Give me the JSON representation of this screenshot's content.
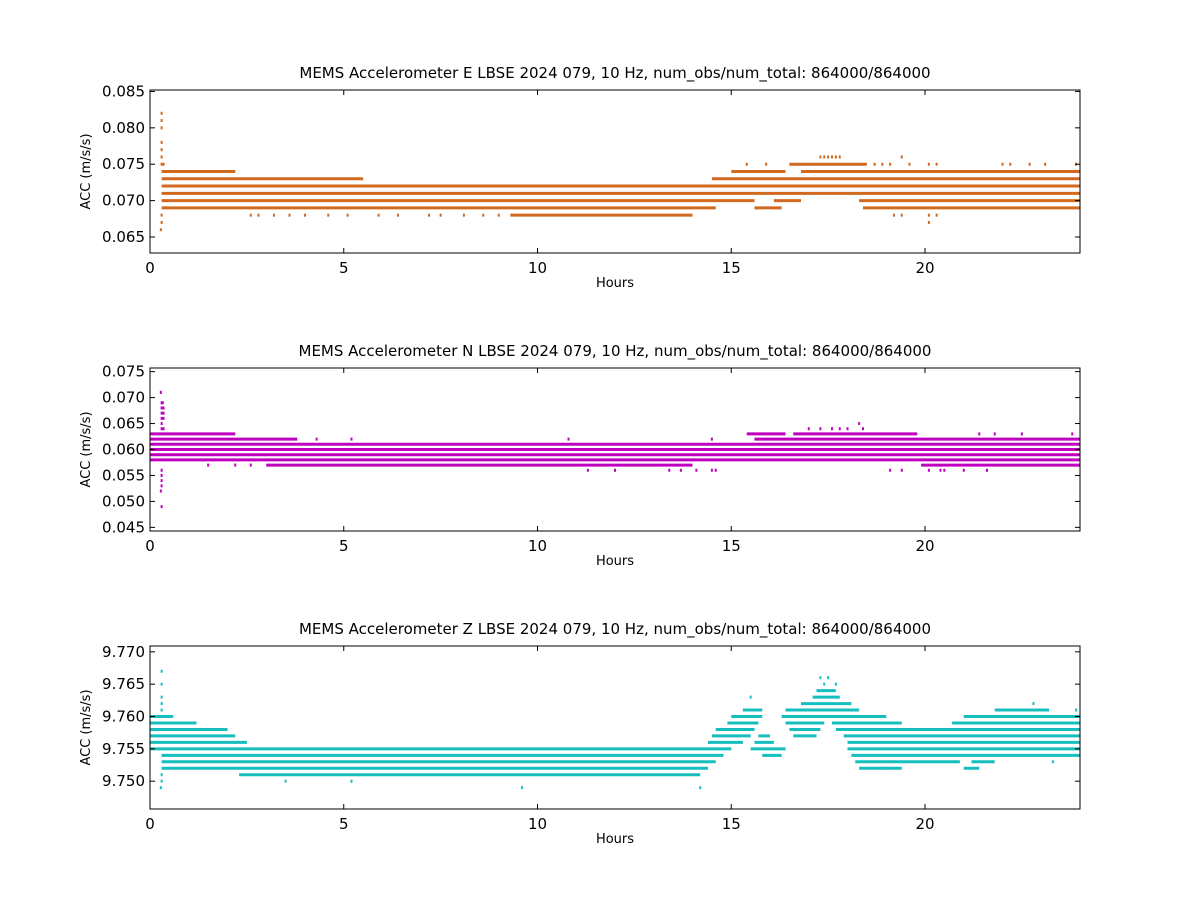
{
  "chart_data": [
    {
      "type": "scatter",
      "title": "MEMS Accelerometer E LBSE 2024 079, 10 Hz, num_obs/num_total: 864000/864000",
      "xlabel": "Hours",
      "ylabel": "ACC (m/s/s)",
      "xlim": [
        0,
        24
      ],
      "ylim": [
        0.0628,
        0.0852
      ],
      "x_ticks": [
        0,
        5,
        10,
        15,
        20
      ],
      "y_ticks": [
        0.065,
        0.07,
        0.075,
        0.08,
        0.085
      ],
      "y_decimals": 3,
      "grid": false,
      "color": "#d2691e",
      "series": [
        {
          "quantization_step": 0.001,
          "bands": [
            {
              "y": 0.069,
              "x": [
                [
                  0.3,
                  14.6
                ],
                [
                  15.6,
                  16.3
                ],
                [
                  18.4,
                  24
                ]
              ]
            },
            {
              "y": 0.07,
              "x": [
                [
                  0.3,
                  15.6
                ],
                [
                  16.1,
                  16.8
                ],
                [
                  18.3,
                  24
                ]
              ]
            },
            {
              "y": 0.071,
              "x": [
                [
                  0.3,
                  24
                ]
              ]
            },
            {
              "y": 0.072,
              "x": [
                [
                  0.3,
                  24
                ]
              ]
            },
            {
              "y": 0.073,
              "x": [
                [
                  0.3,
                  5.5
                ],
                [
                  14.5,
                  24
                ]
              ]
            },
            {
              "y": 0.074,
              "x": [
                [
                  0.3,
                  2.2
                ],
                [
                  15.0,
                  16.4
                ],
                [
                  16.8,
                  24
                ]
              ]
            },
            {
              "y": 0.075,
              "x": [
                [
                  16.5,
                  18.5
                ]
              ]
            },
            {
              "y": 0.068,
              "x": [
                [
                  9.3,
                  14.0
                ]
              ]
            }
          ],
          "points": [
            {
              "x": 0.3,
              "y": 0.082
            },
            {
              "x": 0.3,
              "y": 0.081
            },
            {
              "x": 0.3,
              "y": 0.08
            },
            {
              "x": 0.3,
              "y": 0.078
            },
            {
              "x": 0.3,
              "y": 0.077
            },
            {
              "x": 0.3,
              "y": 0.076
            },
            {
              "x": 0.3,
              "y": 0.075
            },
            {
              "x": 0.35,
              "y": 0.075
            },
            {
              "x": 0.3,
              "y": 0.068
            },
            {
              "x": 0.3,
              "y": 0.067
            },
            {
              "x": 0.28,
              "y": 0.066
            },
            {
              "x": 2.6,
              "y": 0.068
            },
            {
              "x": 2.8,
              "y": 0.068
            },
            {
              "x": 3.2,
              "y": 0.068
            },
            {
              "x": 3.6,
              "y": 0.068
            },
            {
              "x": 4.0,
              "y": 0.068
            },
            {
              "x": 4.6,
              "y": 0.068
            },
            {
              "x": 5.1,
              "y": 0.068
            },
            {
              "x": 5.9,
              "y": 0.068
            },
            {
              "x": 6.4,
              "y": 0.068
            },
            {
              "x": 7.2,
              "y": 0.068
            },
            {
              "x": 7.5,
              "y": 0.068
            },
            {
              "x": 8.1,
              "y": 0.068
            },
            {
              "x": 8.6,
              "y": 0.068
            },
            {
              "x": 9.0,
              "y": 0.068
            },
            {
              "x": 17.3,
              "y": 0.076
            },
            {
              "x": 17.4,
              "y": 0.076
            },
            {
              "x": 17.5,
              "y": 0.076
            },
            {
              "x": 17.6,
              "y": 0.076
            },
            {
              "x": 17.7,
              "y": 0.076
            },
            {
              "x": 17.8,
              "y": 0.076
            },
            {
              "x": 19.4,
              "y": 0.076
            },
            {
              "x": 15.4,
              "y": 0.075
            },
            {
              "x": 15.9,
              "y": 0.075
            },
            {
              "x": 18.7,
              "y": 0.075
            },
            {
              "x": 18.9,
              "y": 0.075
            },
            {
              "x": 19.1,
              "y": 0.075
            },
            {
              "x": 19.6,
              "y": 0.075
            },
            {
              "x": 20.1,
              "y": 0.075
            },
            {
              "x": 20.3,
              "y": 0.075
            },
            {
              "x": 22.0,
              "y": 0.075
            },
            {
              "x": 22.2,
              "y": 0.075
            },
            {
              "x": 22.7,
              "y": 0.075
            },
            {
              "x": 23.1,
              "y": 0.075
            },
            {
              "x": 23.9,
              "y": 0.075
            },
            {
              "x": 19.2,
              "y": 0.068
            },
            {
              "x": 19.4,
              "y": 0.068
            },
            {
              "x": 20.1,
              "y": 0.068
            },
            {
              "x": 20.3,
              "y": 0.068
            },
            {
              "x": 20.1,
              "y": 0.067
            }
          ]
        }
      ]
    },
    {
      "type": "scatter",
      "title": "MEMS Accelerometer N LBSE 2024 079, 10 Hz, num_obs/num_total: 864000/864000",
      "xlabel": "Hours",
      "ylabel": "ACC (m/s/s)",
      "xlim": [
        0,
        24
      ],
      "ylim": [
        0.0443,
        0.0757
      ],
      "x_ticks": [
        0,
        5,
        10,
        15,
        20
      ],
      "y_ticks": [
        0.045,
        0.05,
        0.055,
        0.06,
        0.065,
        0.07,
        0.075
      ],
      "y_decimals": 3,
      "grid": false,
      "color": "#bf00bf",
      "series": [
        {
          "quantization_step": 0.001,
          "bands": [
            {
              "y": 0.058,
              "x": [
                [
                  0.0,
                  24
                ]
              ]
            },
            {
              "y": 0.059,
              "x": [
                [
                  0.0,
                  24
                ]
              ]
            },
            {
              "y": 0.06,
              "x": [
                [
                  0.0,
                  24
                ]
              ]
            },
            {
              "y": 0.061,
              "x": [
                [
                  0.0,
                  24
                ]
              ]
            },
            {
              "y": 0.062,
              "x": [
                [
                  0.0,
                  3.8
                ],
                [
                  15.6,
                  24
                ]
              ]
            },
            {
              "y": 0.063,
              "x": [
                [
                  0.0,
                  2.2
                ],
                [
                  15.4,
                  16.4
                ],
                [
                  16.6,
                  19.8
                ]
              ]
            },
            {
              "y": 0.057,
              "x": [
                [
                  3.0,
                  14.0
                ],
                [
                  19.9,
                  24
                ]
              ]
            }
          ],
          "points": [
            {
              "x": 0.28,
              "y": 0.071
            },
            {
              "x": 0.3,
              "y": 0.069
            },
            {
              "x": 0.33,
              "y": 0.069
            },
            {
              "x": 0.3,
              "y": 0.068
            },
            {
              "x": 0.35,
              "y": 0.068
            },
            {
              "x": 0.3,
              "y": 0.067
            },
            {
              "x": 0.35,
              "y": 0.067
            },
            {
              "x": 0.3,
              "y": 0.066
            },
            {
              "x": 0.35,
              "y": 0.066
            },
            {
              "x": 0.3,
              "y": 0.065
            },
            {
              "x": 0.3,
              "y": 0.064
            },
            {
              "x": 0.35,
              "y": 0.064
            },
            {
              "x": 0.3,
              "y": 0.056
            },
            {
              "x": 0.3,
              "y": 0.055
            },
            {
              "x": 0.3,
              "y": 0.054
            },
            {
              "x": 0.3,
              "y": 0.053
            },
            {
              "x": 0.28,
              "y": 0.052
            },
            {
              "x": 0.3,
              "y": 0.049
            },
            {
              "x": 1.5,
              "y": 0.057
            },
            {
              "x": 2.2,
              "y": 0.057
            },
            {
              "x": 2.6,
              "y": 0.057
            },
            {
              "x": 4.3,
              "y": 0.062
            },
            {
              "x": 5.2,
              "y": 0.062
            },
            {
              "x": 10.8,
              "y": 0.062
            },
            {
              "x": 11.3,
              "y": 0.056
            },
            {
              "x": 12.0,
              "y": 0.056
            },
            {
              "x": 13.4,
              "y": 0.056
            },
            {
              "x": 13.7,
              "y": 0.056
            },
            {
              "x": 14.1,
              "y": 0.056
            },
            {
              "x": 14.5,
              "y": 0.056
            },
            {
              "x": 14.6,
              "y": 0.056
            },
            {
              "x": 14.5,
              "y": 0.062
            },
            {
              "x": 17.0,
              "y": 0.064
            },
            {
              "x": 17.3,
              "y": 0.064
            },
            {
              "x": 17.6,
              "y": 0.064
            },
            {
              "x": 17.8,
              "y": 0.064
            },
            {
              "x": 18.0,
              "y": 0.064
            },
            {
              "x": 18.3,
              "y": 0.065
            },
            {
              "x": 18.4,
              "y": 0.064
            },
            {
              "x": 19.1,
              "y": 0.056
            },
            {
              "x": 19.4,
              "y": 0.056
            },
            {
              "x": 20.1,
              "y": 0.056
            },
            {
              "x": 20.4,
              "y": 0.056
            },
            {
              "x": 20.5,
              "y": 0.056
            },
            {
              "x": 21.0,
              "y": 0.056
            },
            {
              "x": 21.6,
              "y": 0.056
            },
            {
              "x": 21.4,
              "y": 0.063
            },
            {
              "x": 21.8,
              "y": 0.063
            },
            {
              "x": 22.5,
              "y": 0.063
            },
            {
              "x": 23.8,
              "y": 0.063
            }
          ]
        }
      ]
    },
    {
      "type": "scatter",
      "title": "MEMS Accelerometer Z LBSE 2024 079, 10 Hz, num_obs/num_total: 864000/864000",
      "xlabel": "Hours",
      "ylabel": "ACC (m/s/s)",
      "xlim": [
        0,
        24
      ],
      "ylim": [
        9.7457,
        9.7709
      ],
      "x_ticks": [
        0,
        5,
        10,
        15,
        20
      ],
      "y_ticks": [
        9.75,
        9.755,
        9.76,
        9.765,
        9.77
      ],
      "y_decimals": 3,
      "grid": false,
      "color": "#17bebe",
      "series": [
        {
          "quantization_step": 0.001,
          "bands": [
            {
              "y": 9.751,
              "x": [
                [
                  2.3,
                  14.2
                ]
              ]
            },
            {
              "y": 9.752,
              "x": [
                [
                  0.3,
                  14.4
                ],
                [
                  18.3,
                  19.4
                ],
                [
                  21.0,
                  21.4
                ]
              ]
            },
            {
              "y": 9.753,
              "x": [
                [
                  0.3,
                  14.6
                ],
                [
                  18.2,
                  20.9
                ],
                [
                  21.2,
                  21.8
                ]
              ]
            },
            {
              "y": 9.754,
              "x": [
                [
                  0.3,
                  14.8
                ],
                [
                  15.8,
                  16.3
                ],
                [
                  18.1,
                  24
                ]
              ]
            },
            {
              "y": 9.755,
              "x": [
                [
                  0.0,
                  15.0
                ],
                [
                  15.5,
                  16.4
                ],
                [
                  18.0,
                  24
                ]
              ]
            },
            {
              "y": 9.756,
              "x": [
                [
                  0.0,
                  2.5
                ],
                [
                  14.4,
                  15.3
                ],
                [
                  15.6,
                  16.1
                ],
                [
                  18.0,
                  24
                ]
              ]
            },
            {
              "y": 9.757,
              "x": [
                [
                  0.0,
                  2.2
                ],
                [
                  14.5,
                  15.5
                ],
                [
                  15.7,
                  16.0
                ],
                [
                  16.6,
                  17.2
                ],
                [
                  17.9,
                  24
                ]
              ]
            },
            {
              "y": 9.758,
              "x": [
                [
                  0.0,
                  2.0
                ],
                [
                  14.6,
                  15.6
                ],
                [
                  16.5,
                  17.3
                ],
                [
                  17.7,
                  24
                ]
              ]
            },
            {
              "y": 9.759,
              "x": [
                [
                  0.0,
                  1.2
                ],
                [
                  14.9,
                  15.7
                ],
                [
                  16.4,
                  17.4
                ],
                [
                  17.6,
                  19.4
                ],
                [
                  20.7,
                  24
                ]
              ]
            },
            {
              "y": 9.76,
              "x": [
                [
                  0.0,
                  0.6
                ],
                [
                  15.0,
                  15.8
                ],
                [
                  16.3,
                  19.0
                ],
                [
                  21.0,
                  24
                ]
              ]
            },
            {
              "y": 9.761,
              "x": [
                [
                  15.3,
                  15.8
                ],
                [
                  16.4,
                  18.3
                ],
                [
                  21.8,
                  23.2
                ]
              ]
            },
            {
              "y": 9.762,
              "x": [
                [
                  16.8,
                  18.1
                ]
              ]
            },
            {
              "y": 9.763,
              "x": [
                [
                  17.1,
                  17.8
                ]
              ]
            },
            {
              "y": 9.764,
              "x": [
                [
                  17.2,
                  17.7
                ]
              ]
            }
          ],
          "points": [
            {
              "x": 0.3,
              "y": 9.767
            },
            {
              "x": 0.3,
              "y": 9.765
            },
            {
              "x": 0.3,
              "y": 9.763
            },
            {
              "x": 0.3,
              "y": 9.762
            },
            {
              "x": 0.3,
              "y": 9.761
            },
            {
              "x": 0.3,
              "y": 9.751
            },
            {
              "x": 0.3,
              "y": 9.75
            },
            {
              "x": 0.28,
              "y": 9.749
            },
            {
              "x": 17.3,
              "y": 9.766
            },
            {
              "x": 17.5,
              "y": 9.766
            },
            {
              "x": 17.4,
              "y": 9.765
            },
            {
              "x": 17.7,
              "y": 9.765
            },
            {
              "x": 15.5,
              "y": 9.763
            },
            {
              "x": 3.5,
              "y": 9.75
            },
            {
              "x": 5.2,
              "y": 9.75
            },
            {
              "x": 9.6,
              "y": 9.749
            },
            {
              "x": 14.2,
              "y": 9.749
            },
            {
              "x": 22.8,
              "y": 9.762
            },
            {
              "x": 23.9,
              "y": 9.761
            },
            {
              "x": 23.3,
              "y": 9.753
            },
            {
              "x": 18.9,
              "y": 9.752
            }
          ]
        }
      ]
    }
  ]
}
